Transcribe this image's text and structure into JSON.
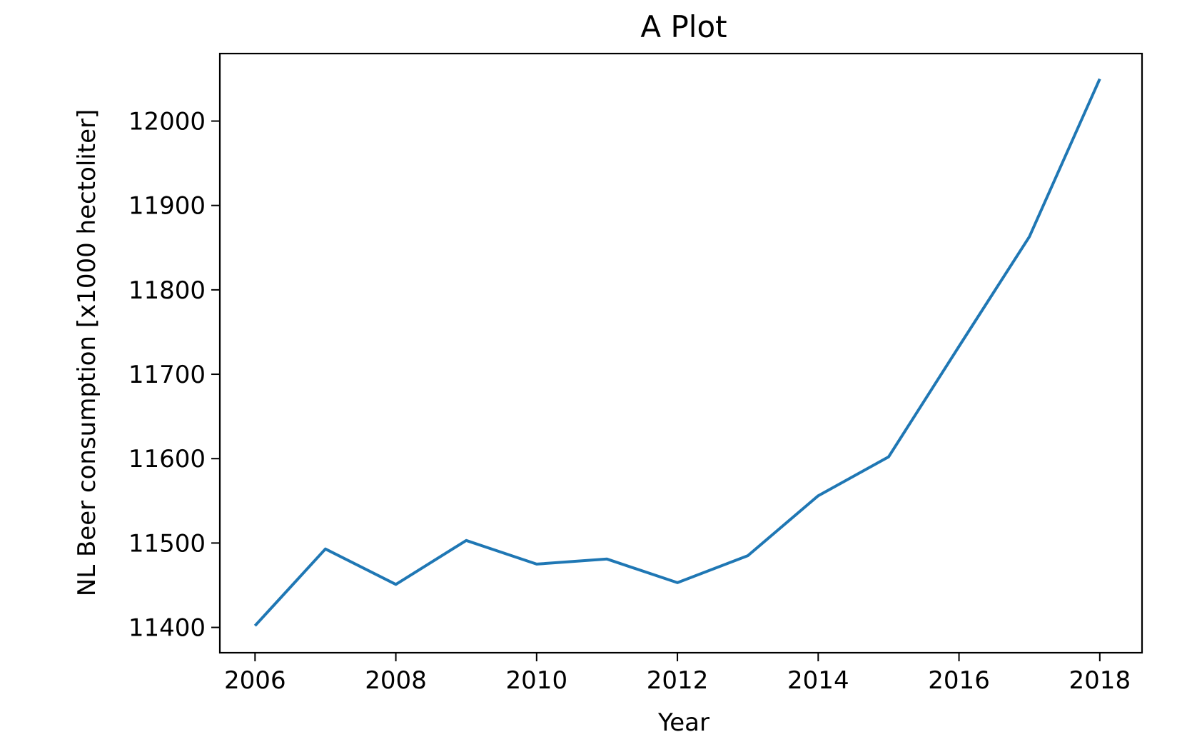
{
  "chart_data": {
    "type": "line",
    "title": "A Plot",
    "xlabel": "Year",
    "ylabel": "NL Beer consumption [x1000 hectoliter]",
    "x": [
      2006,
      2007,
      2008,
      2009,
      2010,
      2011,
      2012,
      2013,
      2014,
      2015,
      2016,
      2017,
      2018
    ],
    "series": [
      {
        "name": "",
        "color": "#1f77b4",
        "values": [
          11402,
          11493,
          11451,
          11503,
          11475,
          11481,
          11453,
          11485,
          11556,
          11602,
          11733,
          11863,
          12050
        ]
      }
    ],
    "xlim": [
      2005.5,
      2018.6
    ],
    "ylim": [
      11370,
      12080
    ],
    "xticks": [
      2006,
      2008,
      2010,
      2012,
      2014,
      2016,
      2018
    ],
    "yticks": [
      11400,
      11500,
      11600,
      11700,
      11800,
      11900,
      12000
    ],
    "grid": false,
    "legend": "none"
  }
}
